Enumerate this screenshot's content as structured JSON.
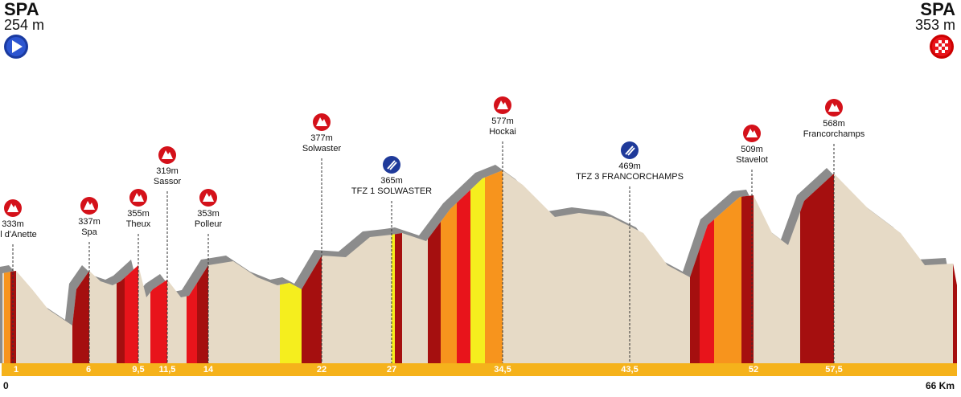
{
  "start": {
    "name": "SPA",
    "altitude": "254 m"
  },
  "finish": {
    "name": "SPA",
    "altitude": "353 m"
  },
  "points": [
    {
      "altitude": "333m",
      "name": "Col d'Anette"
    },
    {
      "altitude": "337m",
      "name": "Spa"
    },
    {
      "altitude": "355m",
      "name": "Theux"
    },
    {
      "altitude": "319m",
      "name": "Sassor"
    },
    {
      "altitude": "353m",
      "name": "Polleur"
    },
    {
      "altitude": "377m",
      "name": "Solwaster"
    },
    {
      "altitude": "365m",
      "name": "TFZ 1 SOLWASTER"
    },
    {
      "altitude": "577m",
      "name": "Hockai"
    },
    {
      "altitude": "469m",
      "name": "TFZ 3 FRANCORCHAMPS"
    },
    {
      "altitude": "509m",
      "name": "Stavelot"
    },
    {
      "altitude": "568m",
      "name": "Francorchamps"
    }
  ],
  "km_markers": [
    "1",
    "6",
    "9,5",
    "11,5",
    "14",
    "22",
    "27",
    "34,5",
    "43,5",
    "52",
    "57,5"
  ],
  "distance": {
    "start": "0",
    "end": "66 Km"
  }
}
